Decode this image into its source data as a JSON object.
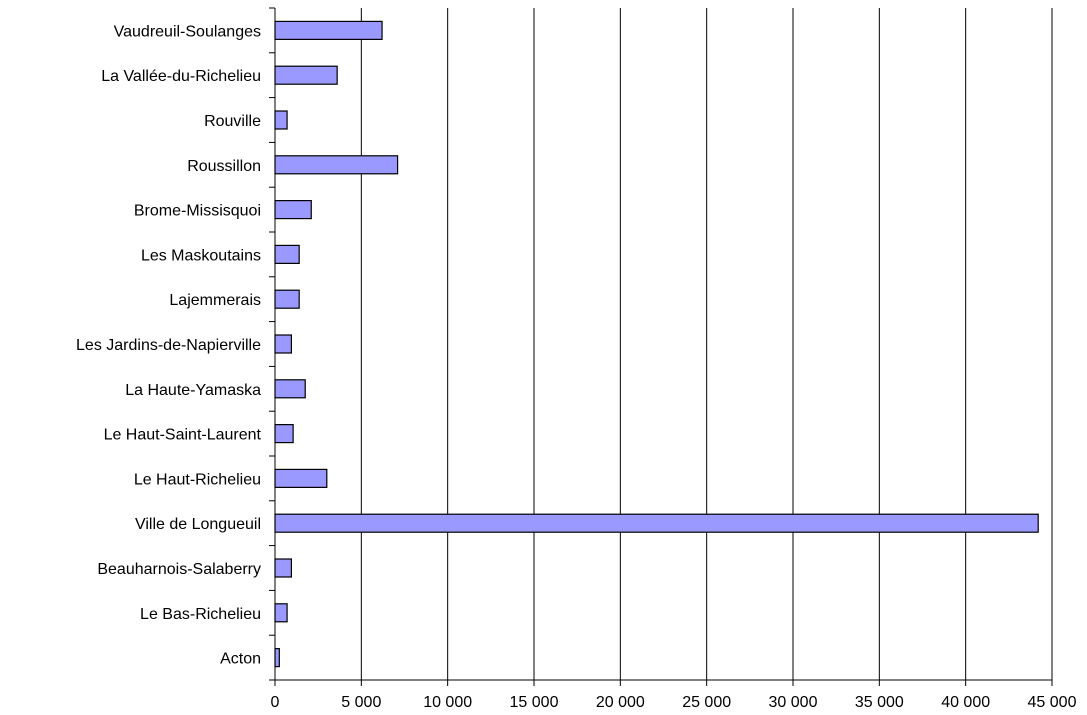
{
  "chart_data": {
    "type": "bar",
    "orientation": "horizontal",
    "title": "",
    "xlabel": "",
    "ylabel": "",
    "categories": [
      "Acton",
      "Le Bas-Richelieu",
      "Beauharnois-Salaberry",
      "Ville de Longueuil",
      "Le Haut-Richelieu",
      "Le Haut-Saint-Laurent",
      "La Haute-Yamaska",
      "Les Jardins-de-Napierville",
      "Lajemmerais",
      "Les Maskoutains",
      "Brome-Missisquoi",
      "Roussillon",
      "Rouville",
      "La Vallée-du-Richelieu",
      "Vaudreuil-Soulanges"
    ],
    "values": [
      250,
      700,
      950,
      44200,
      3000,
      1050,
      1750,
      950,
      1400,
      1400,
      2100,
      7100,
      700,
      3600,
      6200
    ],
    "xlim": [
      0,
      45000
    ],
    "xticks": [
      0,
      5000,
      10000,
      15000,
      20000,
      25000,
      30000,
      35000,
      40000,
      45000
    ],
    "xtick_labels": [
      "0",
      "5 000",
      "10 000",
      "15 000",
      "20 000",
      "25 000",
      "30 000",
      "35 000",
      "40 000",
      "45 000"
    ],
    "grid": "vertical",
    "legend": "none",
    "bar_color": "#9999ff",
    "bar_edge_color": "#000000"
  }
}
